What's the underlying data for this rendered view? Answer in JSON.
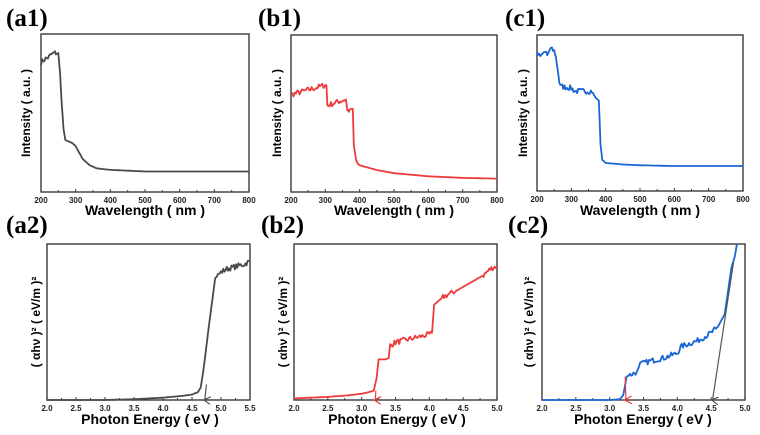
{
  "colors": {
    "a": "#4a4a4a",
    "b": "#ee3b3b",
    "c": "#1a66d6",
    "arrow_gray": "#555555",
    "arrow_red": "#ee3b3b"
  },
  "chart_data": [
    {
      "id": "a1",
      "panel_label": "(a1)",
      "type": "line",
      "title": "",
      "xlabel": "Wavelength ( nm )",
      "ylabel": "Intensity ( a.u. )",
      "xlim": [
        200,
        800
      ],
      "ylim": [
        0,
        1
      ],
      "xticks": [
        200,
        300,
        400,
        500,
        600,
        700,
        800
      ],
      "tick_labels": [
        "200",
        "300",
        "400",
        "500",
        "600",
        "700",
        "800"
      ],
      "color_key": "a",
      "series": [
        {
          "name": "a1",
          "x": [
            200,
            210,
            220,
            230,
            240,
            250,
            255,
            260,
            265,
            270,
            280,
            290,
            300,
            310,
            320,
            340,
            360,
            400,
            450,
            500,
            600,
            700,
            800
          ],
          "y": [
            0.82,
            0.84,
            0.85,
            0.87,
            0.88,
            0.88,
            0.75,
            0.55,
            0.4,
            0.33,
            0.32,
            0.31,
            0.29,
            0.25,
            0.21,
            0.17,
            0.15,
            0.14,
            0.135,
            0.13,
            0.13,
            0.13,
            0.13
          ]
        }
      ],
      "noise_range": [
        200,
        250
      ]
    },
    {
      "id": "b1",
      "panel_label": "(b1)",
      "type": "line",
      "title": "",
      "xlabel": "Wavelength ( nm )",
      "ylabel": "Intensity ( a.u. )",
      "xlim": [
        200,
        800
      ],
      "ylim": [
        0,
        1
      ],
      "xticks": [
        200,
        300,
        400,
        500,
        600,
        700,
        800
      ],
      "tick_labels": [
        "200",
        "300",
        "400",
        "500",
        "600",
        "700",
        "800"
      ],
      "color_key": "b",
      "series": [
        {
          "name": "b1",
          "x": [
            200,
            250,
            298,
            303,
            306,
            330,
            360,
            364,
            368,
            375,
            380,
            383,
            390,
            395,
            400,
            450,
            500,
            600,
            700,
            800
          ],
          "y": [
            0.62,
            0.65,
            0.68,
            0.68,
            0.55,
            0.57,
            0.59,
            0.52,
            0.52,
            0.53,
            0.53,
            0.3,
            0.2,
            0.18,
            0.17,
            0.14,
            0.12,
            0.1,
            0.09,
            0.085
          ]
        }
      ],
      "noise_range": [
        200,
        370
      ]
    },
    {
      "id": "c1",
      "panel_label": "(c1)",
      "type": "line",
      "title": "",
      "xlabel": "Wavelength ( nm )",
      "ylabel": "Intensity ( a.u. )",
      "xlim": [
        200,
        800
      ],
      "ylim": [
        0,
        1
      ],
      "xticks": [
        200,
        300,
        400,
        500,
        600,
        700,
        800
      ],
      "tick_labels": [
        "200",
        "300",
        "400",
        "500",
        "600",
        "700",
        "800"
      ],
      "color_key": "c",
      "series": [
        {
          "name": "c1",
          "x": [
            200,
            210,
            220,
            230,
            240,
            250,
            255,
            260,
            265,
            270,
            300,
            310,
            340,
            360,
            370,
            375,
            380,
            385,
            390,
            400,
            450,
            500,
            600,
            700,
            800
          ],
          "y": [
            0.88,
            0.86,
            0.89,
            0.87,
            0.92,
            0.9,
            0.86,
            0.78,
            0.7,
            0.67,
            0.66,
            0.64,
            0.64,
            0.64,
            0.6,
            0.59,
            0.58,
            0.3,
            0.2,
            0.18,
            0.17,
            0.165,
            0.16,
            0.16,
            0.16
          ]
        }
      ],
      "noise_range": [
        200,
        360
      ]
    },
    {
      "id": "a2",
      "panel_label": "(a2)",
      "type": "line",
      "title": "",
      "xlabel": "Photon Energy ( eV )",
      "ylabel": "( αhν )² ( eV/m )²",
      "xlim": [
        2.0,
        5.5
      ],
      "ylim": [
        0,
        1
      ],
      "xticks": [
        2.0,
        2.5,
        3.0,
        3.5,
        4.0,
        4.5,
        5.0,
        5.5
      ],
      "tick_labels": [
        "2.0",
        "2.5",
        "3.0",
        "3.5",
        "4.0",
        "4.5",
        "5.0",
        "5.5"
      ],
      "color_key": "a",
      "series": [
        {
          "name": "a2",
          "x": [
            2.0,
            3.0,
            3.5,
            4.0,
            4.3,
            4.5,
            4.6,
            4.65,
            4.7,
            4.8,
            4.9,
            4.95,
            5.0,
            5.1,
            5.2,
            5.3,
            5.4,
            5.5
          ],
          "y": [
            0.0,
            0.0,
            0.005,
            0.015,
            0.025,
            0.035,
            0.05,
            0.08,
            0.2,
            0.5,
            0.78,
            0.8,
            0.82,
            0.84,
            0.85,
            0.86,
            0.87,
            0.89
          ]
        }
      ],
      "noise_range": [
        4.95,
        5.5
      ],
      "arrows": [
        {
          "from": [
            4.75,
            0.1
          ],
          "to": [
            4.72,
            0.0
          ],
          "color_key": "arrow_gray"
        }
      ],
      "annotations": [
        {
          "type": "bandgap_arrow",
          "x": 4.72
        }
      ]
    },
    {
      "id": "b2",
      "panel_label": "(b2)",
      "type": "line",
      "title": "",
      "xlabel": "Photon Energy ( eV )",
      "ylabel": "( αhν )² ( eV/m )²",
      "xlim": [
        2.0,
        5.0
      ],
      "ylim": [
        0,
        1
      ],
      "xticks": [
        2.0,
        2.5,
        3.0,
        3.5,
        4.0,
        4.5,
        5.0
      ],
      "tick_labels": [
        "2.0",
        "2.5",
        "3.0",
        "3.5",
        "4.0",
        "4.5",
        "5.0"
      ],
      "color_key": "b",
      "series": [
        {
          "name": "b2",
          "x": [
            2.0,
            2.5,
            2.8,
            3.0,
            3.1,
            3.18,
            3.22,
            3.25,
            3.35,
            3.4,
            3.42,
            3.5,
            3.7,
            4.0,
            4.04,
            4.07,
            4.2,
            4.4,
            4.6,
            4.8,
            4.9,
            5.0
          ],
          "y": [
            0.01,
            0.02,
            0.03,
            0.04,
            0.05,
            0.06,
            0.14,
            0.26,
            0.26,
            0.27,
            0.35,
            0.37,
            0.39,
            0.42,
            0.43,
            0.61,
            0.66,
            0.7,
            0.75,
            0.8,
            0.84,
            0.86
          ]
        }
      ],
      "noise_range": [
        3.42,
        5.0
      ],
      "arrows": [
        {
          "from": [
            3.21,
            0.06
          ],
          "to": [
            3.2,
            -0.01
          ],
          "color_key": "arrow_red"
        }
      ],
      "annotations": [
        {
          "type": "bandgap_arrow",
          "x": 3.2
        }
      ]
    },
    {
      "id": "c2",
      "panel_label": "(c2)",
      "type": "line",
      "title": "",
      "xlabel": "Photon Energy ( eV )",
      "ylabel": "( αhν )² ( eV/m )²",
      "xlim": [
        2.0,
        5.0
      ],
      "ylim": [
        0,
        1
      ],
      "xticks": [
        2.0,
        2.5,
        3.0,
        3.5,
        4.0,
        4.5,
        5.0
      ],
      "tick_labels": [
        "2.0",
        "2.5",
        "3.0",
        "3.5",
        "4.0",
        "4.5",
        "5.0"
      ],
      "color_key": "c",
      "series": [
        {
          "name": "c2",
          "x": [
            2.0,
            2.5,
            3.0,
            3.15,
            3.2,
            3.23,
            3.25,
            3.3,
            3.4,
            3.45,
            3.6,
            3.8,
            4.0,
            4.05,
            4.1,
            4.3,
            4.5,
            4.6,
            4.7,
            4.75,
            4.8,
            4.85,
            4.88
          ],
          "y": [
            0.0,
            0.0,
            0.0,
            0.005,
            0.03,
            0.1,
            0.15,
            0.16,
            0.18,
            0.23,
            0.25,
            0.27,
            0.3,
            0.34,
            0.35,
            0.38,
            0.43,
            0.47,
            0.55,
            0.7,
            0.85,
            0.92,
            1.0
          ]
        }
      ],
      "noise_range": [
        3.3,
        4.55
      ],
      "arrows": [
        {
          "from": [
            3.23,
            0.15
          ],
          "to": [
            3.24,
            0.0
          ],
          "color_key": "arrow_red"
        },
        {
          "from": [
            4.83,
            0.88
          ],
          "to": [
            4.52,
            0.0
          ],
          "color_key": "arrow_gray"
        }
      ],
      "annotations": [
        {
          "type": "bandgap_arrow",
          "x": 3.24
        },
        {
          "type": "bandgap_arrow",
          "x": 4.52
        }
      ]
    }
  ]
}
